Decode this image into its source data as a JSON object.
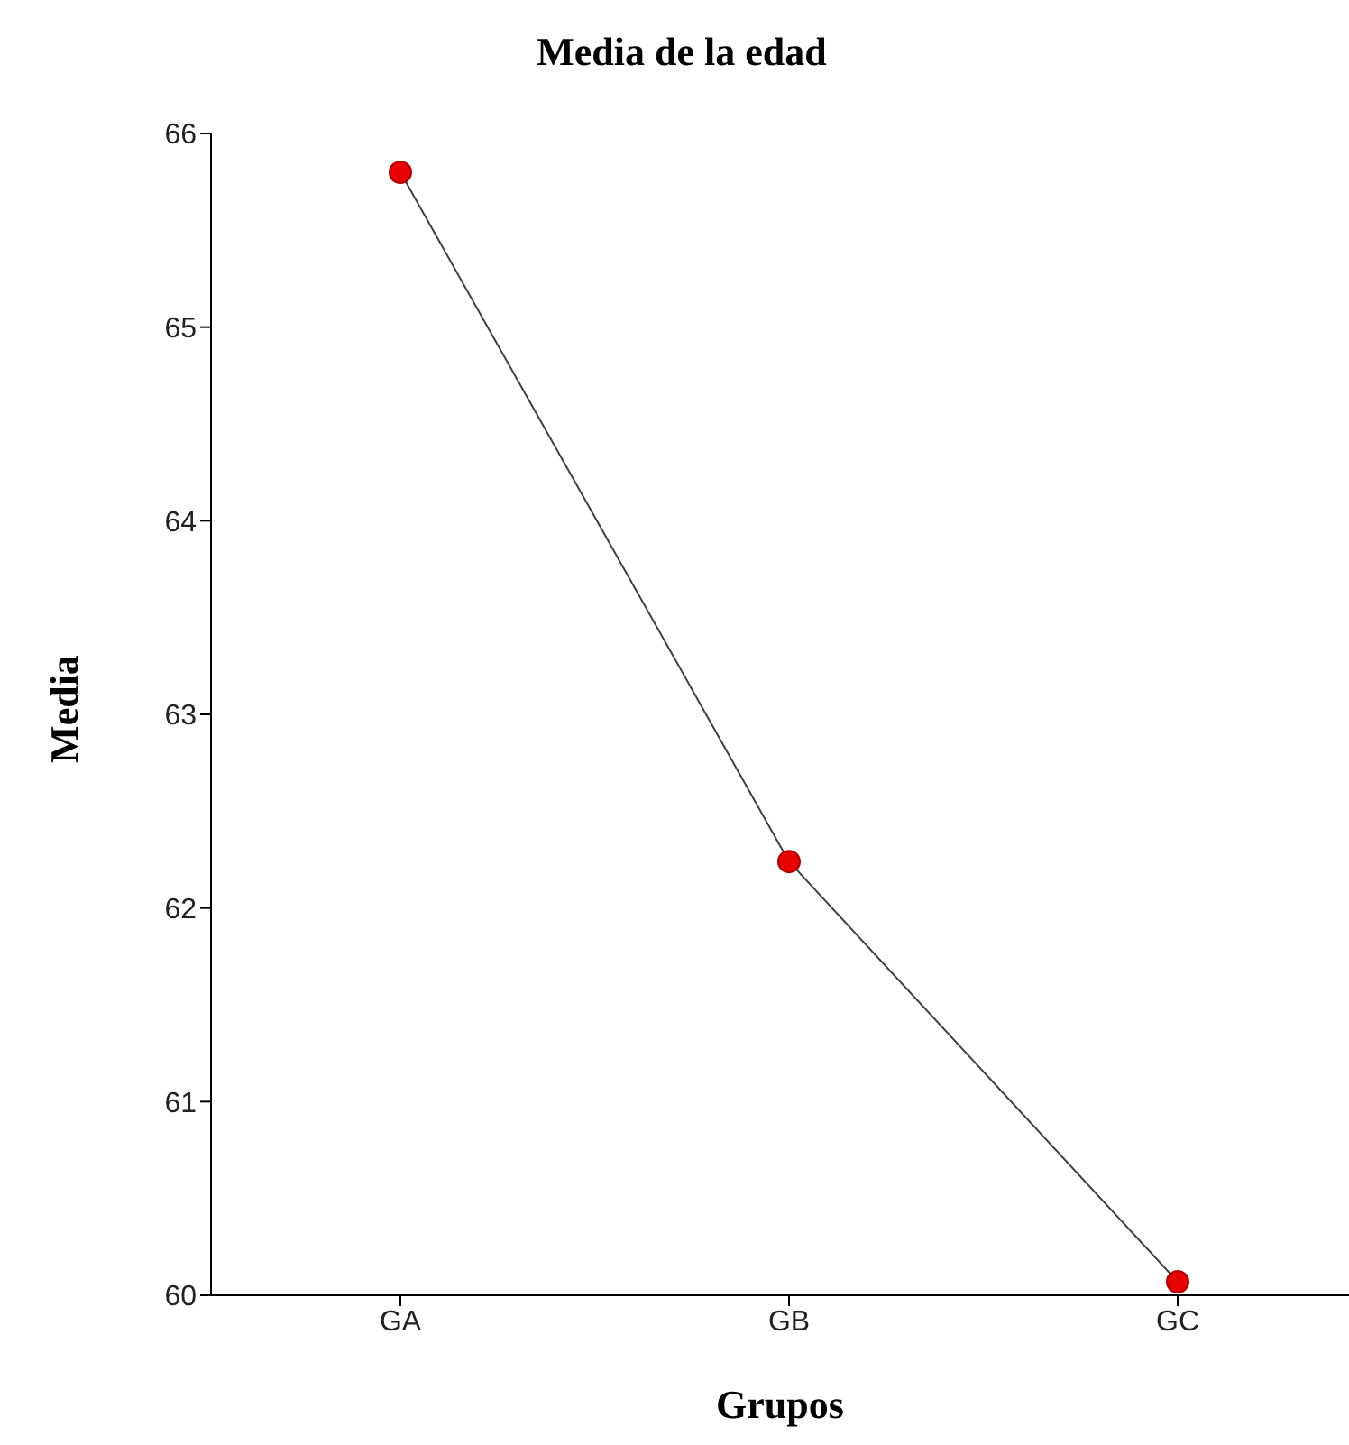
{
  "chart_data": {
    "type": "line",
    "title": "Media de la edad",
    "xlabel": "Grupos",
    "ylabel": "Media",
    "categories": [
      "GA",
      "GB",
      "GC"
    ],
    "series": [
      {
        "color": "#404040",
        "colors": [
          "#e60000",
          "#e60000",
          "#e60000"
        ],
        "values": [
          65.8,
          62.24,
          60.07
        ]
      }
    ],
    "ylim": [
      60,
      66
    ],
    "yticks": [
      60,
      61,
      62,
      63,
      64,
      65,
      66
    ],
    "grid": false,
    "legend": false,
    "marker": "circle",
    "line_style": "solid"
  }
}
